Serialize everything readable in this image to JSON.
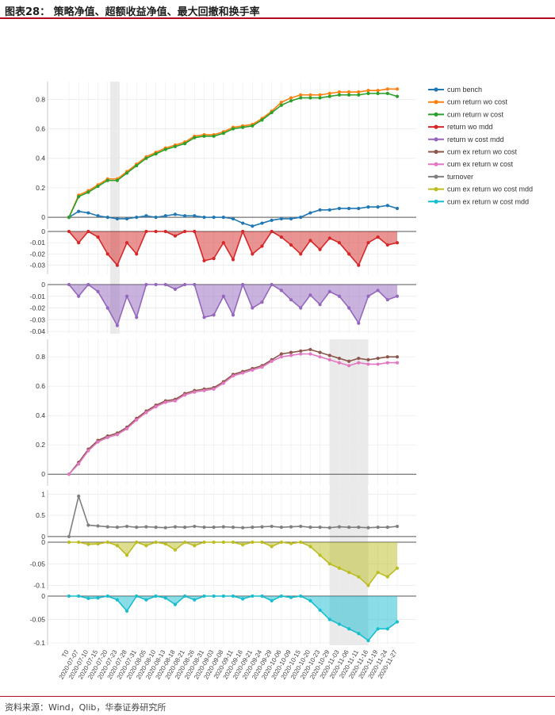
{
  "caption": "图表28：  策略净值、超额收益净值、最大回撤和换手率",
  "source": "资料来源：Wind，Qlib，华泰证券研究所",
  "chart_data": {
    "type": "line",
    "dates": [
      "T0",
      "2020-07-07",
      "2020-07-10",
      "2020-07-15",
      "2020-07-20",
      "2020-07-23",
      "2020-07-28",
      "2020-07-31",
      "2020-08-05",
      "2020-08-10",
      "2020-08-13",
      "2020-08-18",
      "2020-08-21",
      "2020-08-26",
      "2020-08-31",
      "2020-09-03",
      "2020-09-08",
      "2020-09-11",
      "2020-09-16",
      "2020-09-21",
      "2020-09-24",
      "2020-09-29",
      "2020-10-06",
      "2020-10-09",
      "2020-10-15",
      "2020-10-20",
      "2020-10-23",
      "2020-10-29",
      "2020-11-03",
      "2020-11-06",
      "2020-11-11",
      "2020-11-16",
      "2020-11-19",
      "2020-11-24",
      "2020-11-27"
    ],
    "legend": [
      {
        "name": "cum bench",
        "color": "#1f77b4"
      },
      {
        "name": "cum return wo cost",
        "color": "#ff7f0e"
      },
      {
        "name": "cum return w cost",
        "color": "#2ca02c"
      },
      {
        "name": "return wo mdd",
        "color": "#d62728"
      },
      {
        "name": "return w cost mdd",
        "color": "#9467bd"
      },
      {
        "name": "cum ex return wo cost",
        "color": "#8c564b"
      },
      {
        "name": "cum ex return w cost",
        "color": "#e377c2"
      },
      {
        "name": "turnover",
        "color": "#7f7f7f"
      },
      {
        "name": "cum ex return wo cost mdd",
        "color": "#bcbd22"
      },
      {
        "name": "cum ex return w cost mdd",
        "color": "#17becf"
      }
    ],
    "panels": [
      {
        "id": "cum-returns",
        "ylim": [
          -0.08,
          0.92
        ],
        "yticks": [
          "0",
          "0.2",
          "0.4",
          "0.6",
          "0.8"
        ],
        "series": [
          {
            "name": "cum bench",
            "color": "#1f77b4",
            "values": [
              0,
              0.04,
              0.03,
              0.01,
              0.0,
              -0.01,
              -0.01,
              0.0,
              0.01,
              0.0,
              0.01,
              0.02,
              0.01,
              0.01,
              0.0,
              0.0,
              0.0,
              -0.01,
              -0.04,
              -0.06,
              -0.04,
              -0.02,
              -0.01,
              -0.01,
              0.0,
              0.03,
              0.05,
              0.05,
              0.06,
              0.06,
              0.06,
              0.07,
              0.07,
              0.08,
              0.06
            ]
          },
          {
            "name": "cum return wo cost",
            "color": "#ff7f0e",
            "values": [
              0,
              0.15,
              0.18,
              0.22,
              0.26,
              0.26,
              0.31,
              0.36,
              0.41,
              0.44,
              0.47,
              0.49,
              0.51,
              0.55,
              0.56,
              0.56,
              0.58,
              0.61,
              0.62,
              0.63,
              0.67,
              0.72,
              0.78,
              0.81,
              0.83,
              0.83,
              0.83,
              0.84,
              0.85,
              0.85,
              0.85,
              0.86,
              0.86,
              0.87,
              0.87
            ]
          },
          {
            "name": "cum return w cost",
            "color": "#2ca02c",
            "values": [
              0,
              0.14,
              0.17,
              0.21,
              0.25,
              0.25,
              0.3,
              0.35,
              0.4,
              0.43,
              0.46,
              0.48,
              0.5,
              0.54,
              0.55,
              0.55,
              0.57,
              0.6,
              0.61,
              0.62,
              0.66,
              0.71,
              0.76,
              0.79,
              0.81,
              0.81,
              0.81,
              0.82,
              0.83,
              0.83,
              0.83,
              0.84,
              0.84,
              0.84,
              0.82
            ]
          }
        ]
      },
      {
        "id": "return-wo-mdd",
        "ylim": [
          -0.038,
          0.0
        ],
        "yticks": [
          "0",
          "-0.01",
          "-0.02",
          "-0.03"
        ],
        "series": [
          {
            "name": "return wo mdd",
            "color": "#d62728",
            "fill": true,
            "values": [
              0,
              -0.01,
              0,
              -0.005,
              -0.02,
              -0.03,
              -0.01,
              -0.02,
              0,
              0,
              0,
              -0.004,
              0,
              0,
              -0.026,
              -0.024,
              -0.01,
              -0.025,
              0,
              -0.02,
              -0.013,
              0,
              -0.005,
              -0.012,
              -0.02,
              -0.008,
              -0.016,
              -0.006,
              -0.01,
              -0.02,
              -0.03,
              -0.01,
              -0.005,
              -0.012,
              -0.01
            ]
          }
        ]
      },
      {
        "id": "return-w-cost-mdd",
        "ylim": [
          -0.042,
          0.0
        ],
        "yticks": [
          "0",
          "-0.01",
          "-0.02",
          "-0.03",
          "-0.04"
        ],
        "series": [
          {
            "name": "return w cost mdd",
            "color": "#9467bd",
            "fill": true,
            "values": [
              0,
              -0.01,
              0,
              -0.006,
              -0.02,
              -0.035,
              -0.01,
              -0.028,
              0,
              0,
              0,
              -0.004,
              0,
              0,
              -0.028,
              -0.026,
              -0.01,
              -0.026,
              0,
              -0.02,
              -0.015,
              0,
              -0.005,
              -0.013,
              -0.02,
              -0.009,
              -0.017,
              -0.006,
              -0.01,
              -0.02,
              -0.033,
              -0.01,
              -0.005,
              -0.013,
              -0.01
            ]
          }
        ]
      },
      {
        "id": "cum-ex-returns",
        "ylim": [
          -0.08,
          0.92
        ],
        "yticks": [
          "0",
          "0.2",
          "0.4",
          "0.6",
          "0.8"
        ],
        "series": [
          {
            "name": "cum ex return wo cost",
            "color": "#8c564b",
            "values": [
              0,
              0.08,
              0.17,
              0.23,
              0.26,
              0.28,
              0.32,
              0.38,
              0.43,
              0.47,
              0.5,
              0.51,
              0.55,
              0.57,
              0.58,
              0.59,
              0.63,
              0.68,
              0.7,
              0.72,
              0.74,
              0.78,
              0.82,
              0.83,
              0.84,
              0.85,
              0.83,
              0.81,
              0.79,
              0.77,
              0.79,
              0.78,
              0.79,
              0.8,
              0.8
            ]
          },
          {
            "name": "cum ex return w cost",
            "color": "#e377c2",
            "values": [
              0,
              0.07,
              0.16,
              0.22,
              0.25,
              0.27,
              0.31,
              0.37,
              0.42,
              0.46,
              0.49,
              0.5,
              0.54,
              0.56,
              0.57,
              0.58,
              0.62,
              0.67,
              0.69,
              0.71,
              0.73,
              0.77,
              0.8,
              0.81,
              0.82,
              0.82,
              0.8,
              0.78,
              0.76,
              0.74,
              0.76,
              0.75,
              0.75,
              0.76,
              0.76
            ]
          }
        ]
      },
      {
        "id": "turnover",
        "ylim": [
          -0.02,
          1.1
        ],
        "yticks": [
          "0",
          "0.5",
          "1"
        ],
        "series": [
          {
            "name": "turnover",
            "color": "#7f7f7f",
            "values": [
              0,
              0.95,
              0.27,
              0.25,
              0.23,
              0.22,
              0.24,
              0.22,
              0.23,
              0.22,
              0.21,
              0.23,
              0.22,
              0.24,
              0.22,
              0.22,
              0.23,
              0.22,
              0.21,
              0.22,
              0.23,
              0.24,
              0.22,
              0.23,
              0.24,
              0.22,
              0.22,
              0.21,
              0.23,
              0.22,
              0.22,
              0.21,
              0.22,
              0.22,
              0.24
            ]
          }
        ]
      },
      {
        "id": "ex-wo-cost-mdd",
        "ylim": [
          -0.11,
          0.0
        ],
        "yticks": [
          "0",
          "-0.05",
          "-0.1"
        ],
        "series": [
          {
            "name": "cum ex return wo cost mdd",
            "color": "#bcbd22",
            "fill": true,
            "values": [
              0,
              0,
              -0.005,
              -0.004,
              0,
              -0.008,
              -0.03,
              0,
              -0.008,
              0,
              -0.004,
              -0.018,
              0,
              -0.008,
              0,
              0,
              0,
              0,
              -0.006,
              0,
              0,
              -0.01,
              0,
              -0.003,
              0,
              -0.01,
              -0.03,
              -0.05,
              -0.06,
              -0.07,
              -0.08,
              -0.1,
              -0.07,
              -0.08,
              -0.06
            ]
          }
        ]
      },
      {
        "id": "ex-w-cost-mdd",
        "ylim": [
          -0.105,
          0.0
        ],
        "yticks": [
          "0",
          "-0.05",
          "-0.1"
        ],
        "series": [
          {
            "name": "cum ex return w cost mdd",
            "color": "#17becf",
            "fill": true,
            "values": [
              0,
              0,
              -0.005,
              -0.004,
              0,
              -0.008,
              -0.032,
              0,
              -0.008,
              0,
              -0.004,
              -0.018,
              0,
              -0.008,
              0,
              0,
              0,
              0,
              -0.006,
              0,
              0,
              -0.01,
              0,
              -0.003,
              0,
              -0.01,
              -0.03,
              -0.05,
              -0.06,
              -0.07,
              -0.08,
              -0.095,
              -0.07,
              -0.07,
              -0.055
            ]
          }
        ]
      }
    ]
  }
}
